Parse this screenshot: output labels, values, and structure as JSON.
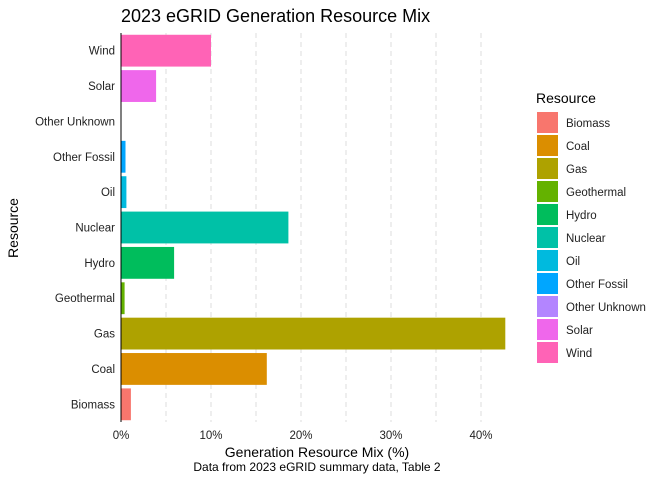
{
  "chart_data": {
    "type": "bar",
    "orientation": "horizontal",
    "title": "2023 eGRID Generation Resource Mix",
    "xlabel": "Generation Resource Mix (%)",
    "ylabel": "Resource",
    "caption": "Data from 2023 eGRID summary data, Table 2",
    "categories": [
      "Biomass",
      "Coal",
      "Gas",
      "Geothermal",
      "Hydro",
      "Nuclear",
      "Oil",
      "Other Fossil",
      "Other Unknown",
      "Solar",
      "Wind"
    ],
    "values": [
      1.1,
      16.2,
      42.7,
      0.4,
      5.9,
      18.6,
      0.6,
      0.5,
      0.0,
      3.9,
      10.0
    ],
    "colors": [
      "#F8766D",
      "#DB8E00",
      "#AEA200",
      "#64B200",
      "#00BD5C",
      "#00C1A7",
      "#00BADE",
      "#00A6FF",
      "#B385FF",
      "#EF67EB",
      "#FF63B6"
    ],
    "xlim": [
      0,
      44
    ],
    "xticks": [
      0,
      10,
      20,
      30,
      40
    ],
    "xtick_labels": [
      "0%",
      "10%",
      "20%",
      "30%",
      "40%"
    ],
    "grid": "vertical dashed",
    "legend": {
      "title": "Resource",
      "placement": "right",
      "entries": [
        "Biomass",
        "Coal",
        "Gas",
        "Geothermal",
        "Hydro",
        "Nuclear",
        "Oil",
        "Other Fossil",
        "Other Unknown",
        "Solar",
        "Wind"
      ]
    }
  }
}
